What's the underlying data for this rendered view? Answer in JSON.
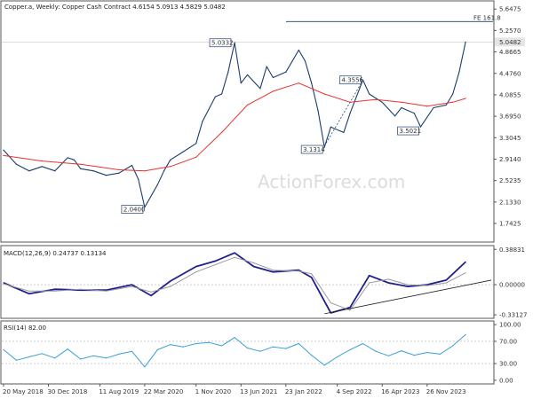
{
  "chart_data": [
    {
      "panel": "price",
      "type": "line",
      "title": "Copper.a, Weekly:  Copper Cash Contract  4.6154 5.0913 4.5829 5.0482",
      "watermark": "ActionForex.com",
      "ylim": [
        1.42,
        5.78
      ],
      "y_ticks": [
        "5.6475",
        "5.2570",
        "4.8665",
        "4.4760",
        "4.0855",
        "3.6950",
        "3.3045",
        "2.9140",
        "2.5235",
        "2.1330",
        "1.7425"
      ],
      "last_price_tag": "5.0482",
      "fe_level": {
        "label": "FE 161.8",
        "value": 5.42
      },
      "annotations": [
        {
          "label": "5.0332",
          "x": "2021-05",
          "value": 5.0332
        },
        {
          "label": "2.0400",
          "x": "2020-03",
          "value": 2.04
        },
        {
          "label": "3.1314",
          "x": "2022-07",
          "value": 3.1314
        },
        {
          "label": "4.3556",
          "x": "2023-01",
          "value": 4.3556
        },
        {
          "label": "3.5021",
          "x": "2023-10",
          "value": 3.5021
        }
      ],
      "series": [
        {
          "role": "price-bars",
          "color": "#1a3d6e",
          "points": [
            [
              "2018-05",
              3.08
            ],
            [
              "2018-07",
              2.82
            ],
            [
              "2018-09",
              2.7
            ],
            [
              "2018-11",
              2.78
            ],
            [
              "2019-01",
              2.7
            ],
            [
              "2019-03",
              2.94
            ],
            [
              "2019-04",
              2.9
            ],
            [
              "2019-05",
              2.74
            ],
            [
              "2019-07",
              2.7
            ],
            [
              "2019-09",
              2.62
            ],
            [
              "2019-11",
              2.66
            ],
            [
              "2020-01",
              2.8
            ],
            [
              "2020-02",
              2.55
            ],
            [
              "2020-03",
              2.04
            ],
            [
              "2020-05",
              2.45
            ],
            [
              "2020-06",
              2.7
            ],
            [
              "2020-07",
              2.9
            ],
            [
              "2020-09",
              3.05
            ],
            [
              "2020-11",
              3.2
            ],
            [
              "2020-12",
              3.6
            ],
            [
              "2021-02",
              4.05
            ],
            [
              "2021-03",
              4.1
            ],
            [
              "2021-04",
              4.5
            ],
            [
              "2021-05",
              5.0332
            ],
            [
              "2021-06",
              4.3
            ],
            [
              "2021-07",
              4.45
            ],
            [
              "2021-09",
              4.2
            ],
            [
              "2021-10",
              4.6
            ],
            [
              "2021-11",
              4.4
            ],
            [
              "2022-01",
              4.5
            ],
            [
              "2022-03",
              4.9
            ],
            [
              "2022-04",
              4.7
            ],
            [
              "2022-05",
              4.3
            ],
            [
              "2022-06",
              3.8
            ],
            [
              "2022-07",
              3.1314
            ],
            [
              "2022-08",
              3.5
            ],
            [
              "2022-10",
              3.4
            ],
            [
              "2022-11",
              3.75
            ],
            [
              "2023-01",
              4.3556
            ],
            [
              "2023-02",
              4.1
            ],
            [
              "2023-04",
              3.95
            ],
            [
              "2023-06",
              3.7
            ],
            [
              "2023-07",
              3.85
            ],
            [
              "2023-09",
              3.75
            ],
            [
              "2023-10",
              3.5021
            ],
            [
              "2023-12",
              3.85
            ],
            [
              "2024-02",
              3.9
            ],
            [
              "2024-03",
              4.1
            ],
            [
              "2024-04",
              4.5
            ],
            [
              "2024-05",
              5.0482
            ]
          ]
        },
        {
          "role": "moving-average",
          "color": "#e5322d",
          "points": [
            [
              "2018-05",
              2.98
            ],
            [
              "2018-11",
              2.88
            ],
            [
              "2019-05",
              2.82
            ],
            [
              "2019-11",
              2.72
            ],
            [
              "2020-03",
              2.7
            ],
            [
              "2020-07",
              2.78
            ],
            [
              "2020-11",
              2.95
            ],
            [
              "2021-03",
              3.4
            ],
            [
              "2021-07",
              3.9
            ],
            [
              "2021-11",
              4.15
            ],
            [
              "2022-03",
              4.3
            ],
            [
              "2022-07",
              4.1
            ],
            [
              "2022-11",
              3.95
            ],
            [
              "2023-03",
              4.0
            ],
            [
              "2023-07",
              3.95
            ],
            [
              "2023-11",
              3.88
            ],
            [
              "2024-03",
              3.95
            ],
            [
              "2024-05",
              4.02
            ]
          ]
        }
      ],
      "trendlines": [
        {
          "style": "dashed",
          "from": [
            "2022-07",
            3.15
          ],
          "to": [
            "2023-01",
            4.35
          ]
        }
      ]
    },
    {
      "panel": "macd",
      "type": "line",
      "label": "MACD(12,26,9) 0.24737 0.13134",
      "ylim": [
        -0.36,
        0.42
      ],
      "y_ticks": [
        "0.38831",
        "0.00000",
        "-0.33127"
      ],
      "series": [
        {
          "role": "macd",
          "color": "#1f1f8f",
          "points": [
            [
              "2018-05",
              0.02
            ],
            [
              "2018-09",
              -0.1
            ],
            [
              "2019-01",
              -0.05
            ],
            [
              "2019-05",
              -0.06
            ],
            [
              "2019-09",
              -0.06
            ],
            [
              "2020-01",
              0.0
            ],
            [
              "2020-04",
              -0.12
            ],
            [
              "2020-07",
              0.04
            ],
            [
              "2020-11",
              0.2
            ],
            [
              "2021-02",
              0.26
            ],
            [
              "2021-05",
              0.35
            ],
            [
              "2021-08",
              0.2
            ],
            [
              "2021-11",
              0.14
            ],
            [
              "2022-03",
              0.16
            ],
            [
              "2022-05",
              0.08
            ],
            [
              "2022-08",
              -0.31
            ],
            [
              "2022-11",
              -0.25
            ],
            [
              "2023-02",
              0.1
            ],
            [
              "2023-05",
              0.02
            ],
            [
              "2023-08",
              -0.02
            ],
            [
              "2023-11",
              0.0
            ],
            [
              "2024-02",
              0.05
            ],
            [
              "2024-05",
              0.25
            ]
          ]
        },
        {
          "role": "signal",
          "color": "#9a9a9a",
          "points": [
            [
              "2018-05",
              0.01
            ],
            [
              "2018-09",
              -0.07
            ],
            [
              "2019-01",
              -0.07
            ],
            [
              "2019-05",
              -0.05
            ],
            [
              "2019-09",
              -0.07
            ],
            [
              "2020-01",
              -0.02
            ],
            [
              "2020-04",
              -0.08
            ],
            [
              "2020-07",
              -0.02
            ],
            [
              "2020-11",
              0.14
            ],
            [
              "2021-02",
              0.22
            ],
            [
              "2021-05",
              0.3
            ],
            [
              "2021-08",
              0.24
            ],
            [
              "2021-11",
              0.16
            ],
            [
              "2022-03",
              0.15
            ],
            [
              "2022-05",
              0.12
            ],
            [
              "2022-08",
              -0.2
            ],
            [
              "2022-11",
              -0.28
            ],
            [
              "2023-02",
              0.02
            ],
            [
              "2023-05",
              0.06
            ],
            [
              "2023-08",
              0.0
            ],
            [
              "2023-11",
              -0.01
            ],
            [
              "2024-02",
              0.02
            ],
            [
              "2024-05",
              0.13
            ]
          ]
        }
      ],
      "trendlines": [
        {
          "style": "solid",
          "from": [
            "2022-07",
            -0.32
          ],
          "to": [
            "2024-09",
            0.05
          ]
        }
      ]
    },
    {
      "panel": "rsi",
      "type": "line",
      "label": "RSI(14) 82.00",
      "ylim": [
        -5,
        105
      ],
      "y_ticks": [
        "100.00",
        "70.00",
        "30.00",
        "0.00"
      ],
      "levels": [
        70,
        30
      ],
      "series": [
        {
          "role": "rsi",
          "color": "#3aa0d8",
          "points": [
            [
              "2018-05",
              55
            ],
            [
              "2018-07",
              36
            ],
            [
              "2018-09",
              42
            ],
            [
              "2018-11",
              48
            ],
            [
              "2019-01",
              40
            ],
            [
              "2019-03",
              56
            ],
            [
              "2019-05",
              38
            ],
            [
              "2019-07",
              44
            ],
            [
              "2019-09",
              40
            ],
            [
              "2019-11",
              47
            ],
            [
              "2020-01",
              52
            ],
            [
              "2020-03",
              24
            ],
            [
              "2020-05",
              55
            ],
            [
              "2020-07",
              64
            ],
            [
              "2020-09",
              60
            ],
            [
              "2020-11",
              66
            ],
            [
              "2021-01",
              68
            ],
            [
              "2021-03",
              62
            ],
            [
              "2021-05",
              77
            ],
            [
              "2021-07",
              58
            ],
            [
              "2021-09",
              52
            ],
            [
              "2021-11",
              60
            ],
            [
              "2022-01",
              57
            ],
            [
              "2022-03",
              66
            ],
            [
              "2022-05",
              45
            ],
            [
              "2022-07",
              27
            ],
            [
              "2022-09",
              42
            ],
            [
              "2022-11",
              55
            ],
            [
              "2023-01",
              66
            ],
            [
              "2023-03",
              52
            ],
            [
              "2023-05",
              44
            ],
            [
              "2023-07",
              53
            ],
            [
              "2023-09",
              45
            ],
            [
              "2023-11",
              50
            ],
            [
              "2024-01",
              47
            ],
            [
              "2024-03",
              62
            ],
            [
              "2024-05",
              82
            ]
          ]
        }
      ]
    }
  ],
  "x_axis": {
    "dates": [
      "2018-05",
      "2018-12",
      "2019-08",
      "2020-03",
      "2020-11",
      "2021-06",
      "2022-01",
      "2022-09",
      "2023-04",
      "2023-11"
    ],
    "labels": [
      "20 May 2018",
      "30 Dec 2018",
      "11 Aug 2019",
      "22 Mar 2020",
      "1 Nov 2020",
      "13 Jun 2021",
      "23 Jan 2022",
      "4 Sep 2022",
      "16 Apr 2023",
      "26 Nov 2023"
    ]
  }
}
